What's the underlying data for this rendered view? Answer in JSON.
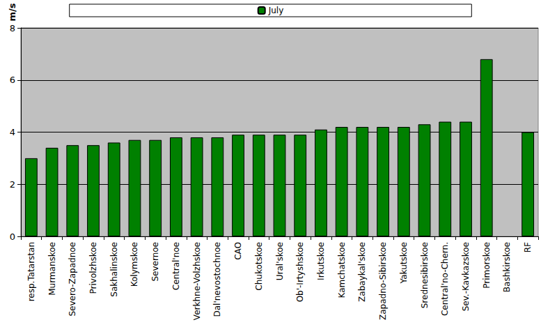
{
  "chart_data": {
    "type": "bar",
    "y_label": "m/s",
    "categories": [
      "resp.Tatarstan",
      "Murmanskoe",
      "Severo-Zapadnoe",
      "Privolzhskoe",
      "Sakhalinskoe",
      "Kolymskoe",
      "Severnoe",
      "Central'noe",
      "Verkhne-Volzhskoe",
      "Dal'nevostochnoe",
      "CAO",
      "Chukotskoe",
      "Ural'skoe",
      "Ob'-Irtyshskoe",
      "Irkutskoe",
      "Kamchatskoe",
      "Zabaykal'skoe",
      "Zapadno-Sibirskoe",
      "Yakutskoe",
      "Srednesibirskoe",
      "Central'no-Chern.",
      "Sev.-Kavkazskoe",
      "Primorskoe",
      "Bashkirskoe",
      "RF"
    ],
    "series": [
      {
        "name": "July",
        "color": "#008000",
        "values": [
          3.0,
          3.4,
          3.5,
          3.5,
          3.6,
          3.7,
          3.7,
          3.8,
          3.8,
          3.8,
          3.9,
          3.9,
          3.9,
          3.9,
          4.1,
          4.2,
          4.2,
          4.2,
          4.2,
          4.3,
          4.4,
          4.4,
          6.8,
          null,
          4.0
        ]
      }
    ],
    "ylim": [
      0,
      8
    ],
    "yticks": [
      0,
      2,
      4,
      6,
      8
    ],
    "grid": true,
    "legend": "top"
  }
}
